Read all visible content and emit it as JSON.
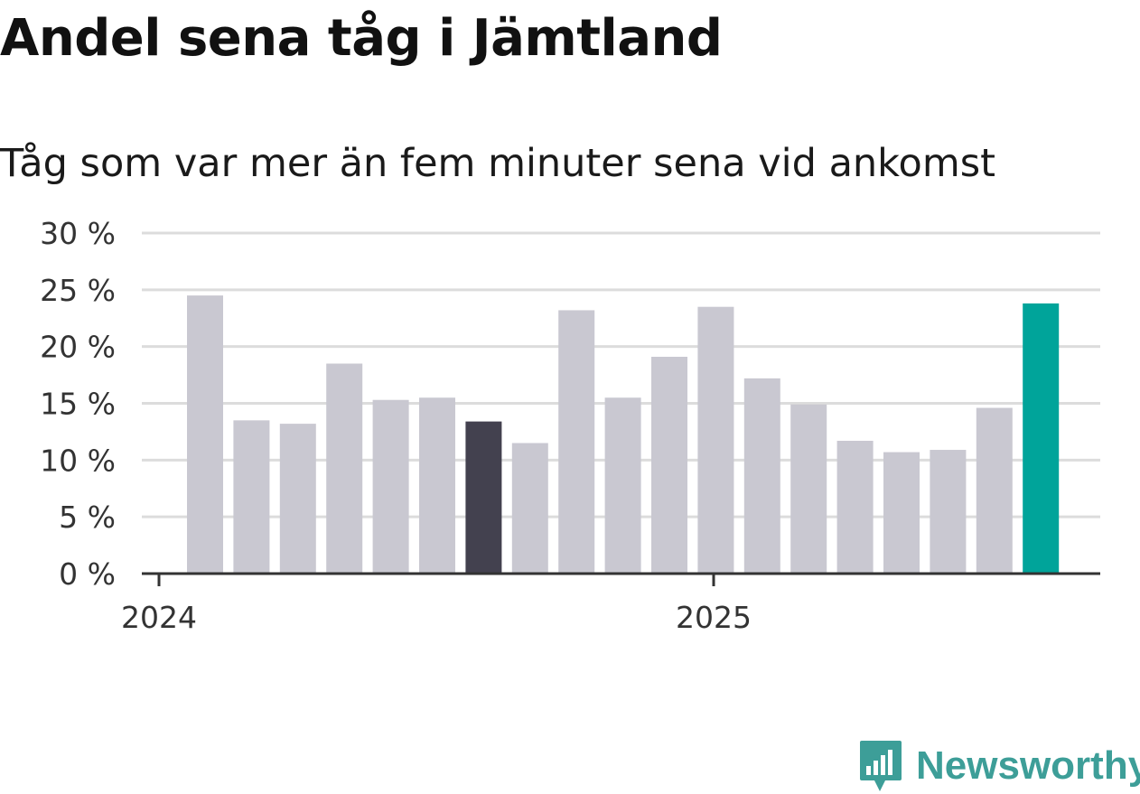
{
  "title": "Andel sena tåg i Jämtland",
  "subtitle": "Tåg som var mer än fem minuter sena vid ankomst",
  "brand": {
    "name": "Newsworthy",
    "icon": "newsworthy-logo-icon",
    "color": "#3d9e98"
  },
  "colors": {
    "bar": "#c9c8d1",
    "highlight_dark": "#43414f",
    "highlight_latest": "#00a49a",
    "grid": "#dcdcdc",
    "axis": "#333333"
  },
  "chart_data": {
    "type": "bar",
    "title": "Andel sena tåg i Jämtland",
    "subtitle": "Tåg som var mer än fem minuter sena vid ankomst",
    "categories": [
      "2024-01",
      "2024-02",
      "2024-03",
      "2024-04",
      "2024-05",
      "2024-06",
      "2024-07",
      "2024-08",
      "2024-09",
      "2024-10",
      "2024-11",
      "2024-12",
      "2025-01",
      "2025-02",
      "2025-03",
      "2025-04",
      "2025-05",
      "2025-06",
      "2025-07"
    ],
    "values": [
      24.5,
      13.5,
      13.2,
      18.5,
      15.3,
      15.5,
      13.4,
      11.5,
      23.2,
      15.5,
      19.1,
      23.5,
      17.2,
      14.9,
      11.7,
      10.7,
      10.9,
      14.6,
      23.8
    ],
    "highlight": {
      "2024-07": "highlight_dark",
      "2025-07": "highlight_latest"
    },
    "ylim": [
      0,
      30
    ],
    "yticks": [
      0,
      5,
      10,
      15,
      20,
      25,
      30
    ],
    "ytick_labels": [
      "0 %",
      "5 %",
      "10 %",
      "15 %",
      "20 %",
      "25 %",
      "30 %"
    ],
    "xticks": [
      {
        "label": "2024",
        "at": "2024-01"
      },
      {
        "label": "2025",
        "at": "2025-01"
      }
    ],
    "grid": true,
    "xlabel": "",
    "ylabel": ""
  }
}
